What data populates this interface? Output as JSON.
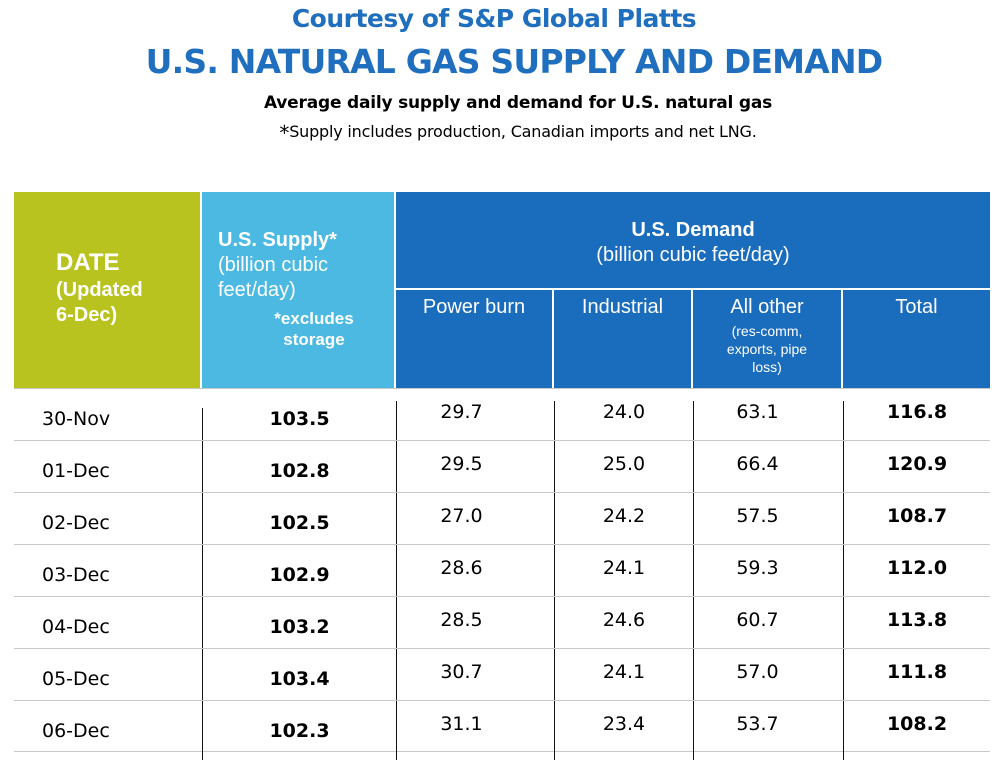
{
  "header": {
    "courtesy": "Courtesy of S&P Global Platts",
    "title": "U.S. NATURAL GAS SUPPLY AND DEMAND",
    "subtitle": "Average daily supply and demand for U.S. natural gas",
    "note_star": "*",
    "note": "Supply includes production, Canadian imports and net LNG."
  },
  "columns": {
    "date": {
      "label": "DATE",
      "sub1": "(Updated",
      "sub2": "6-Dec)"
    },
    "supply": {
      "label": "U.S. Supply*",
      "unit1": "(billion cubic",
      "unit2": "feet/day)",
      "note1": "*excludes",
      "note2": "storage"
    },
    "demand": {
      "label": "U.S. Demand",
      "unit": "(billion cubic feet/day)"
    },
    "power": "Power burn",
    "industrial": "Industrial",
    "other": {
      "label": "All other",
      "sub1": "(res-comm,",
      "sub2": "exports, pipe",
      "sub3": "loss)"
    },
    "total": "Total"
  },
  "rows": [
    {
      "date": "30-Nov",
      "supply": "103.5",
      "power": "29.7",
      "industrial": "24.0",
      "other": "63.1",
      "total": "116.8"
    },
    {
      "date": "01-Dec",
      "supply": "102.8",
      "power": "29.5",
      "industrial": "25.0",
      "other": "66.4",
      "total": "120.9"
    },
    {
      "date": "02-Dec",
      "supply": "102.5",
      "power": "27.0",
      "industrial": "24.2",
      "other": "57.5",
      "total": "108.7"
    },
    {
      "date": "03-Dec",
      "supply": "102.9",
      "power": "28.6",
      "industrial": "24.1",
      "other": "59.3",
      "total": "112.0"
    },
    {
      "date": "04-Dec",
      "supply": "103.2",
      "power": "28.5",
      "industrial": "24.6",
      "other": "60.7",
      "total": "113.8"
    },
    {
      "date": "05-Dec",
      "supply": "103.4",
      "power": "30.7",
      "industrial": "24.1",
      "other": "57.0",
      "total": "111.8"
    },
    {
      "date": "06-Dec",
      "supply": "102.3",
      "power": "31.1",
      "industrial": "23.4",
      "other": "53.7",
      "total": "108.2"
    }
  ],
  "colors": {
    "title_blue": "#1f6fbe",
    "date_green": "#b9c31f",
    "supply_cyan": "#4cb9e3",
    "demand_blue": "#1a6cbd"
  }
}
